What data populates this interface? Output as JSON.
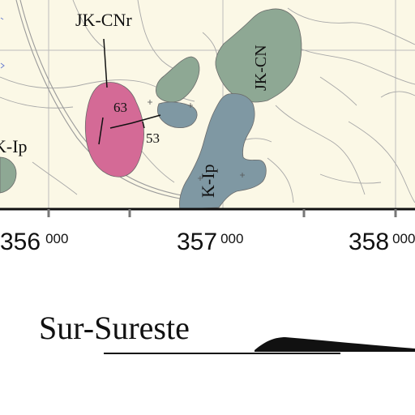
{
  "map": {
    "units": [
      {
        "code": "JK-CNr",
        "fill": "#d46a96"
      },
      {
        "code": "JK-CN",
        "fill": "#8ea894"
      },
      {
        "code": "K-Ip",
        "fill": "#7f98a3"
      },
      {
        "code": "K-Ip",
        "fill": "#8ea894"
      }
    ],
    "dips": [
      "63",
      "53"
    ],
    "background_color": "#fbf8e6",
    "contour_color": "#a8a8a8"
  },
  "grid": {
    "eastings": [
      {
        "main": "356",
        "sub": "000"
      },
      {
        "main": "357",
        "sub": "000"
      },
      {
        "main": "358",
        "sub": "000"
      }
    ]
  },
  "profile": {
    "title": "Sur-Sureste"
  }
}
